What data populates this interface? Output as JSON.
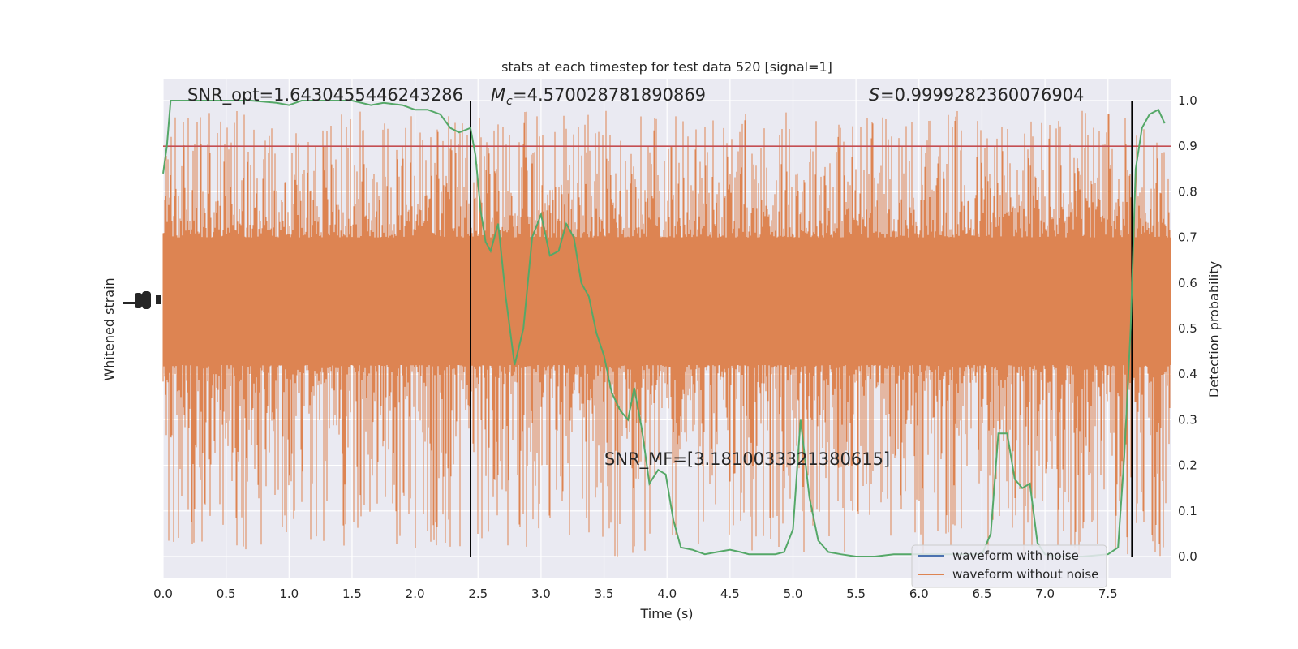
{
  "chart_data": {
    "type": "line",
    "title": "stats at each timestep for test data 520 [signal=1]",
    "xlabel": "Time (s)",
    "ylabel_left": "Whitened strain",
    "ylabel_right": "Detection probability",
    "xlim": [
      0,
      8
    ],
    "ylim_right": [
      -0.05,
      1.05
    ],
    "x_ticks": [
      "0.0",
      "0.5",
      "1.0",
      "1.5",
      "2.0",
      "2.5",
      "3.0",
      "3.5",
      "4.0",
      "4.5",
      "5.0",
      "5.5",
      "6.0",
      "6.5",
      "7.0",
      "7.5"
    ],
    "x_tick_values": [
      0,
      0.5,
      1,
      1.5,
      2,
      2.5,
      3,
      3.5,
      4,
      4.5,
      5,
      5.5,
      6,
      6.5,
      7,
      7.5
    ],
    "y_right_ticks": [
      "0.0",
      "0.1",
      "0.2",
      "0.3",
      "0.4",
      "0.5",
      "0.6",
      "0.7",
      "0.8",
      "0.9",
      "1.0"
    ],
    "y_right_tick_values": [
      0,
      0.1,
      0.2,
      0.3,
      0.4,
      0.5,
      0.6,
      0.7,
      0.8,
      0.9,
      1.0
    ],
    "grid": true,
    "legend_placement": "lower-right",
    "annotations": {
      "snr_opt": "SNR_opt=1.6430455446243286",
      "mc": "=4.570028781890869",
      "s": "=0.9999282360076904",
      "snr_mf": "SNR_MF=[3.1810033321380615]"
    },
    "threshold": 0.9,
    "vlines_x": [
      2.44,
      7.69
    ],
    "series": [
      {
        "name": "waveform with noise",
        "color": "#4c72b0",
        "style": "line"
      },
      {
        "name": "waveform without noise",
        "color": "#dd8452",
        "style": "noise-band",
        "band_center": 0.56,
        "band_half_width": 0.14,
        "spike_up_max": 0.98,
        "spike_down_min": 0.0
      },
      {
        "name": "",
        "color": "#55a868",
        "x": [
          0.0,
          0.03,
          0.06,
          0.15,
          0.3,
          0.5,
          0.7,
          0.9,
          1.0,
          1.1,
          1.3,
          1.5,
          1.65,
          1.75,
          1.9,
          2.0,
          2.1,
          2.2,
          2.28,
          2.35,
          2.44,
          2.48,
          2.52,
          2.56,
          2.6,
          2.66,
          2.72,
          2.79,
          2.86,
          2.93,
          3.0,
          3.07,
          3.14,
          3.2,
          3.26,
          3.32,
          3.38,
          3.44,
          3.5,
          3.56,
          3.63,
          3.69,
          3.74,
          3.8,
          3.86,
          3.93,
          3.99,
          4.05,
          4.11,
          4.2,
          4.3,
          4.4,
          4.5,
          4.58,
          4.65,
          4.72,
          4.8,
          4.86,
          4.93,
          5.0,
          5.06,
          5.13,
          5.2,
          5.28,
          5.38,
          5.5,
          5.65,
          5.8,
          5.95,
          6.1,
          6.3,
          6.5,
          6.57,
          6.63,
          6.7,
          6.76,
          6.82,
          6.88,
          6.94,
          7.0,
          7.1,
          7.3,
          7.5,
          7.58,
          7.63,
          7.68,
          7.72,
          7.77,
          7.83,
          7.9,
          7.95
        ],
        "values": [
          0.84,
          0.9,
          1.0,
          1.0,
          1.0,
          1.0,
          1.0,
          0.995,
          0.99,
          1.0,
          1.0,
          1.0,
          0.99,
          0.995,
          0.99,
          0.98,
          0.98,
          0.97,
          0.94,
          0.93,
          0.94,
          0.88,
          0.76,
          0.69,
          0.67,
          0.73,
          0.57,
          0.42,
          0.5,
          0.7,
          0.75,
          0.66,
          0.67,
          0.73,
          0.7,
          0.6,
          0.57,
          0.49,
          0.44,
          0.36,
          0.32,
          0.3,
          0.37,
          0.28,
          0.16,
          0.19,
          0.18,
          0.08,
          0.02,
          0.015,
          0.005,
          0.01,
          0.015,
          0.01,
          0.005,
          0.005,
          0.005,
          0.005,
          0.01,
          0.06,
          0.3,
          0.13,
          0.035,
          0.01,
          0.005,
          0.0,
          0.0,
          0.005,
          0.005,
          0.005,
          0.005,
          0.005,
          0.05,
          0.27,
          0.27,
          0.17,
          0.15,
          0.16,
          0.03,
          0.005,
          0.0,
          0.0,
          0.005,
          0.02,
          0.22,
          0.5,
          0.85,
          0.94,
          0.97,
          0.98,
          0.95
        ]
      }
    ]
  },
  "colors": {
    "plot_bg": "#eaeaf2",
    "grid": "#ffffff",
    "threshold": "#c44e52",
    "vline": "#000000",
    "text": "#262626"
  }
}
